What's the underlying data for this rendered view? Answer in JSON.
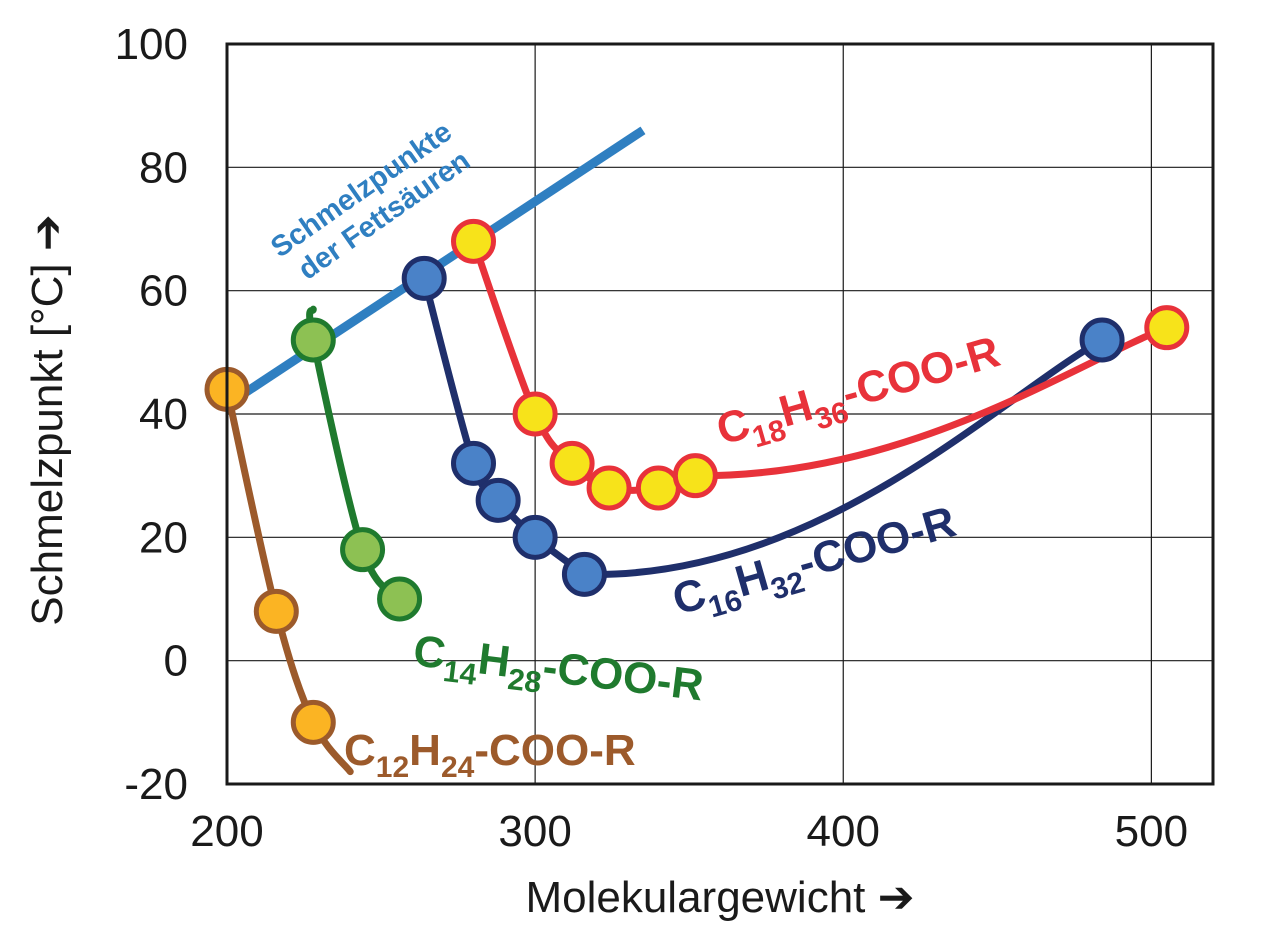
{
  "chart_data": {
    "type": "line",
    "xlabel": "Molekulargewicht",
    "ylabel": "Schmelzpunkt [°C]",
    "axis_arrow": "➔",
    "xlim": [
      200,
      520
    ],
    "ylim": [
      -20,
      100
    ],
    "xticks": [
      200,
      300,
      400,
      500
    ],
    "yticks": [
      100,
      80,
      60,
      40,
      20,
      0,
      -20
    ],
    "grid": true,
    "fatty_acid_line": {
      "name": "Schmelzpunkte der Fettsäuren",
      "label_lines": [
        "Schmelzpunkte",
        "der Fettsäuren"
      ],
      "color": "#2f7fc1",
      "x": [
        200,
        335
      ],
      "y": [
        41.5,
        86
      ]
    },
    "series": [
      {
        "name": "C12H24-COO-R",
        "label_parts": [
          "C",
          "12",
          "H",
          "24",
          "-COO-R"
        ],
        "line_color": "#9c5a2b",
        "marker_fill": "#fbb423",
        "marker_edge": "#9c5a2b",
        "points": [
          [
            200,
            44
          ],
          [
            216,
            8
          ],
          [
            228,
            -10
          ]
        ],
        "curve_end": [
          240,
          -18
        ]
      },
      {
        "name": "C14H28-COO-R",
        "label_parts": [
          "C",
          "14",
          "H",
          "28",
          "-COO-R"
        ],
        "line_color": "#1f7a2e",
        "marker_fill": "#8dc153",
        "marker_edge": "#1f7a2e",
        "curve_start": [
          228,
          57
        ],
        "points": [
          [
            228,
            52
          ],
          [
            244,
            18
          ],
          [
            256,
            10
          ]
        ]
      },
      {
        "name": "C16H32-COO-R",
        "label_parts": [
          "C",
          "16",
          "H",
          "32",
          "-COO-R"
        ],
        "line_color": "#1f2f6b",
        "marker_fill": "#4a82c8",
        "marker_edge": "#1f2f6b",
        "points": [
          [
            264,
            62
          ],
          [
            280,
            32
          ],
          [
            288,
            26
          ],
          [
            300,
            20
          ],
          [
            316,
            14
          ],
          [
            484,
            52
          ]
        ]
      },
      {
        "name": "C18H36-COO-R",
        "label_parts": [
          "C",
          "18",
          "H",
          "36",
          "-COO-R"
        ],
        "line_color": "#e8323a",
        "marker_fill": "#f7e31a",
        "marker_edge": "#e8323a",
        "points": [
          [
            280,
            68
          ],
          [
            300,
            40
          ],
          [
            312,
            32
          ],
          [
            324,
            28
          ],
          [
            340,
            28
          ],
          [
            352,
            30
          ],
          [
            505,
            54
          ]
        ]
      }
    ]
  }
}
